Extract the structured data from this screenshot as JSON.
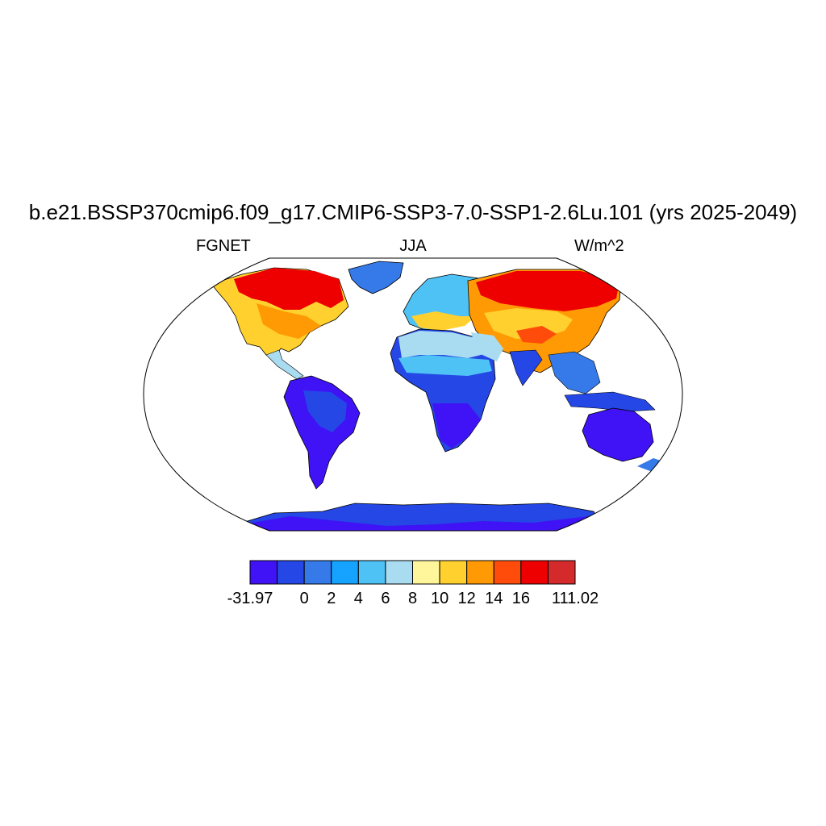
{
  "title": "b.e21.BSSP370cmip6.f09_g17.CMIP6-SSP3-7.0-SSP1-2.6Lu.101 (yrs 2025-2049)",
  "left_string": "FGNET",
  "center_string": "JJA",
  "right_string": "W/m^2",
  "map": {
    "projection": "robinson",
    "field": "FGNET",
    "season": "JJA",
    "units": "W/m^2",
    "ocean_fill": "#ffffff"
  },
  "colorbar": {
    "levels": [
      "-31.97",
      "0",
      "2",
      "4",
      "6",
      "8",
      "10",
      "12",
      "14",
      "16",
      "111.02"
    ],
    "colors": [
      "#3f13f5",
      "#2447e6",
      "#357ae8",
      "#16a2ff",
      "#4fc2f5",
      "#a9dcf0",
      "#fff59b",
      "#ffd02e",
      "#ff9a04",
      "#ff4c0a",
      "#ee0000",
      "#d42a2b"
    ]
  }
}
